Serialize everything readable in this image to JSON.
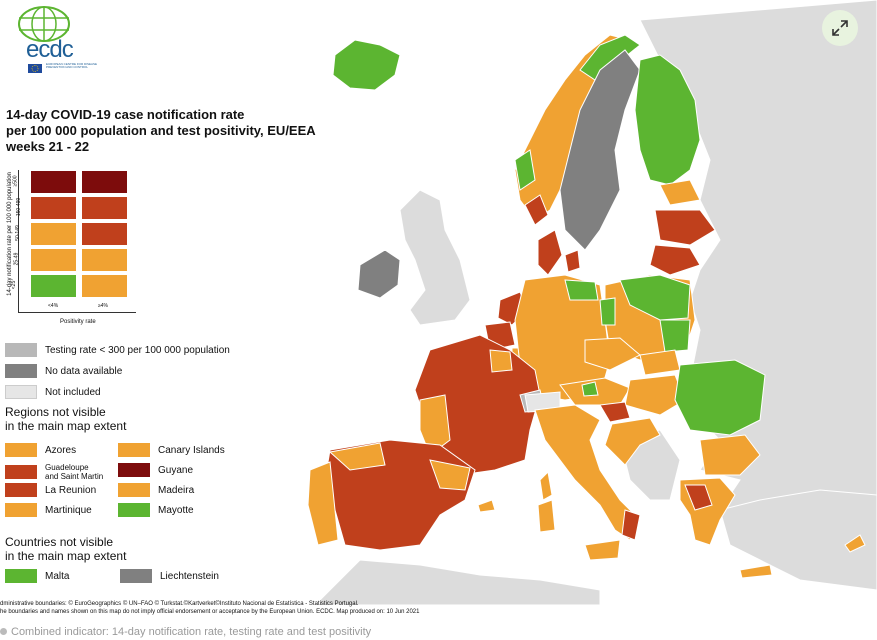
{
  "logo": {
    "text": "ecdc",
    "subtitle": "EUROPEAN CENTRE FOR DISEASE PREVENTION AND CONTROL"
  },
  "title": "14-day COVID-19 case notification rate\nper 100 000 population and test positivity, EU/EEA\nweeks 21 - 22",
  "matrix": {
    "y_axis_label": "14-day notification rate per 100 000 population",
    "y_ticks": [
      "≥500",
      "150-499",
      "50-149",
      "25-49",
      "<25"
    ],
    "x_ticks": [
      "<4%",
      "≥4%"
    ],
    "x_axis_label": "Positivity rate",
    "cells": [
      [
        "#7d0c0c",
        "#7d0c0c"
      ],
      [
        "#c0401c",
        "#c0401c"
      ],
      [
        "#f0a232",
        "#c0401c"
      ],
      [
        "#f0a232",
        "#f0a232"
      ],
      [
        "#5cb531",
        "#f0a232"
      ]
    ]
  },
  "legend": {
    "status": [
      {
        "label": "Testing rate < 300 per 100 000 population",
        "color": "#b8b8b8"
      },
      {
        "label": "No data available",
        "color": "#808080"
      },
      {
        "label": "Not included",
        "color": "#e6e6e6"
      }
    ],
    "regions_heading": "Regions not visible\nin the main map extent",
    "regions_left": [
      {
        "label": "Azores",
        "color": "#f0a232"
      },
      {
        "label": "Guadeloupe\nand Saint Martin",
        "color": "#c0401c"
      },
      {
        "label": "La Reunion",
        "color": "#c0401c"
      },
      {
        "label": "Martinique",
        "color": "#f0a232"
      }
    ],
    "regions_right": [
      {
        "label": "Canary Islands",
        "color": "#f0a232"
      },
      {
        "label": "Guyane",
        "color": "#7d0c0c"
      },
      {
        "label": "Madeira",
        "color": "#f0a232"
      },
      {
        "label": "Mayotte",
        "color": "#5cb531"
      }
    ],
    "countries_heading": "Countries not visible\nin the main map extent",
    "countries": [
      {
        "label": "Malta",
        "color": "#5cb531"
      },
      {
        "label": "Liechtenstein",
        "color": "#808080"
      }
    ]
  },
  "footer": "dministrative boundaries: © EuroGeographics © UN–FAO © Turkstat.©Kartverket©Instituto Nacional de Estatística - Statistics Portugal.\nhe boundaries and names shown on this map do not imply official endorsement or acceptance by the European Union. ECDC. Map produced on: 10 Jun 2021",
  "caption": "Combined indicator: 14-day notification rate, testing rate and test positivity",
  "colors": {
    "green": "#5cb531",
    "orange": "#f0a232",
    "red": "#c0401c",
    "darkred": "#7d0c0c",
    "grey": "#808080",
    "nonEU": "#dcdcdc"
  },
  "expand_icon": "expand-icon"
}
